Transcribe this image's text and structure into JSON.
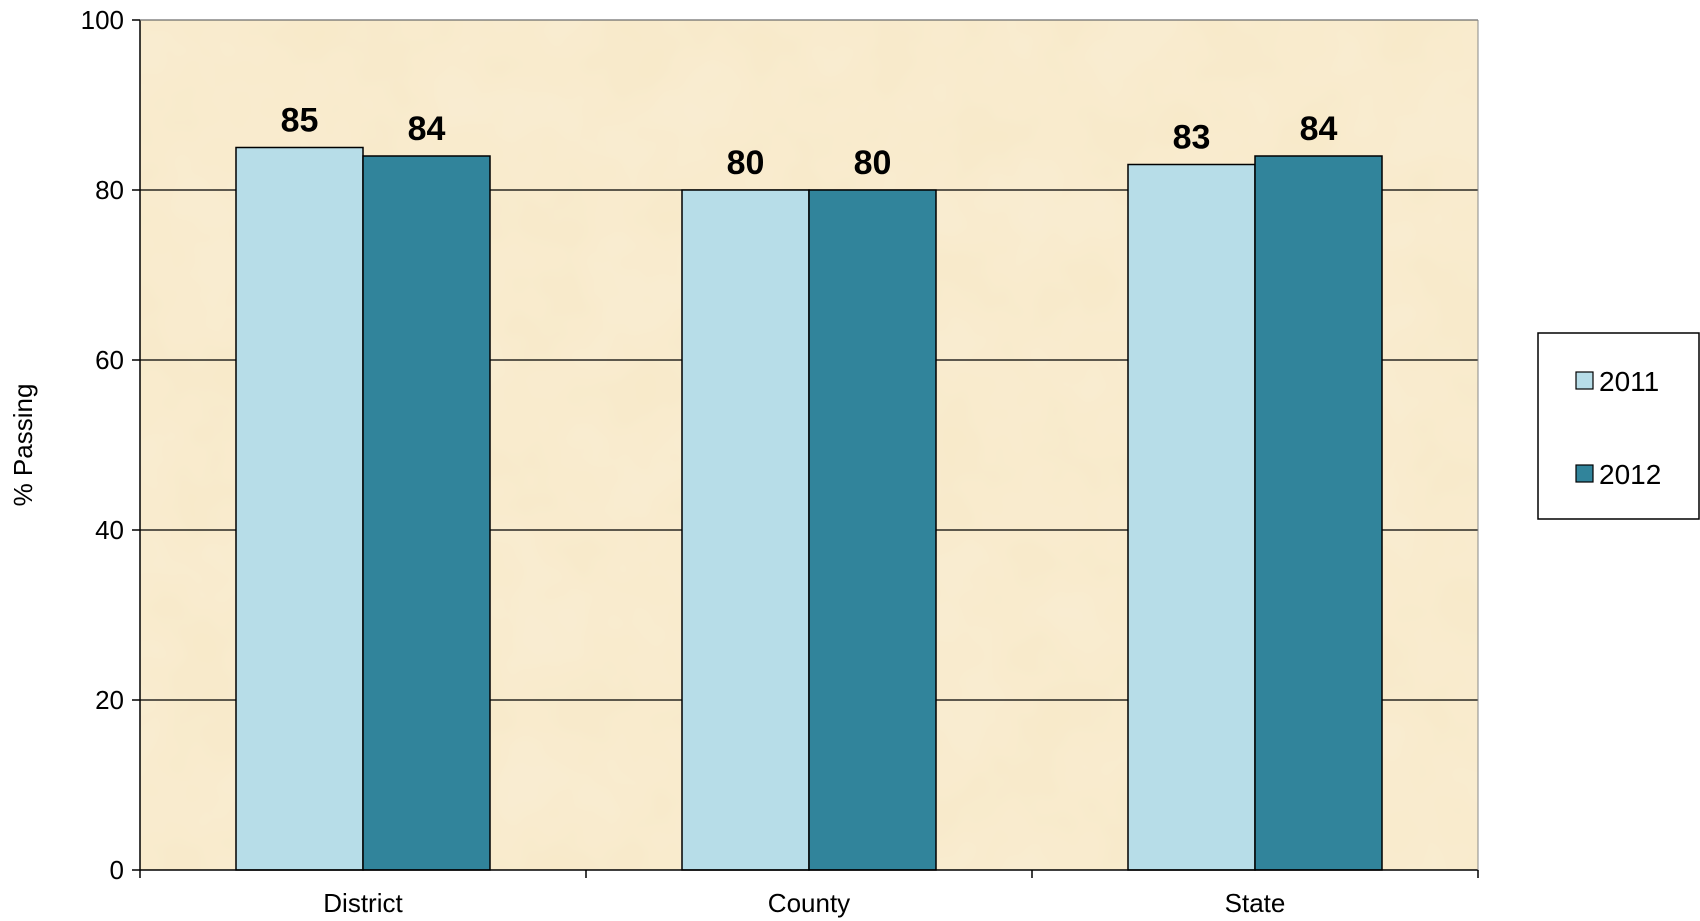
{
  "chart_data": {
    "type": "bar",
    "categories": [
      "District",
      "County",
      "State"
    ],
    "series": [
      {
        "name": "2011",
        "values": [
          85,
          80,
          83
        ],
        "color": "#B7DDE8"
      },
      {
        "name": "2012",
        "values": [
          84,
          80,
          84
        ],
        "color": "#31849B"
      }
    ],
    "ylabel": "% Passing",
    "ylim": [
      0,
      100
    ],
    "yticks": [
      "0",
      "20",
      "40",
      "60",
      "80",
      "100"
    ],
    "grid": true,
    "legend_position": "right",
    "plot_background": "#F8E9C8"
  }
}
